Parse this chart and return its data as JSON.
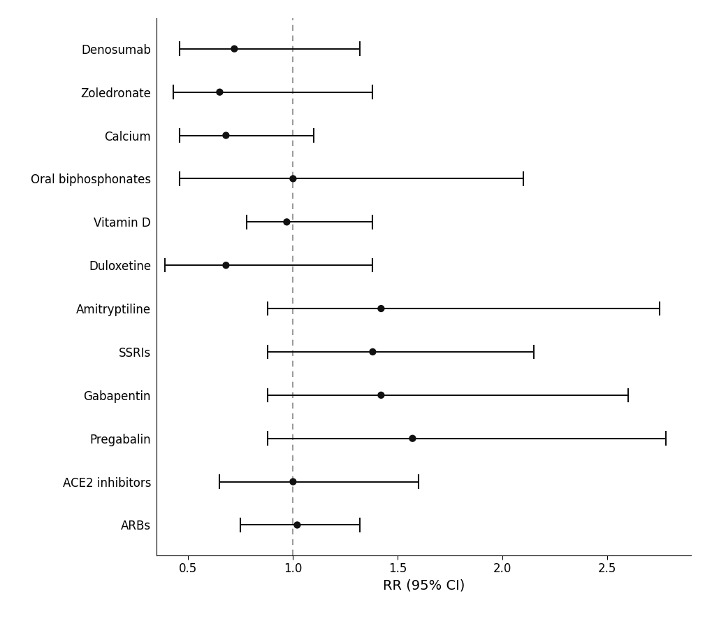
{
  "labels": [
    "Denosumab",
    "Zoledronate",
    "Calcium",
    "Oral biphosphonates",
    "Vitamin D",
    "Duloxetine",
    "Amitryptiline",
    "SSRIs",
    "Gabapentin",
    "Pregabalin",
    "ACE2 inhibitors",
    "ARBs"
  ],
  "rr": [
    0.72,
    0.65,
    0.68,
    1.0,
    0.97,
    0.68,
    1.42,
    1.38,
    1.42,
    1.57,
    1.0,
    1.02
  ],
  "ci_low": [
    0.46,
    0.43,
    0.46,
    0.46,
    0.78,
    0.39,
    0.88,
    0.88,
    0.88,
    0.88,
    0.65,
    0.75
  ],
  "ci_high": [
    1.32,
    1.38,
    1.1,
    2.1,
    1.38,
    1.38,
    2.75,
    2.15,
    2.6,
    2.78,
    1.6,
    1.32
  ],
  "xlabel": "RR (95% CI)",
  "xlim": [
    0.35,
    2.9
  ],
  "xticks": [
    0.5,
    1.0,
    1.5,
    2.0,
    2.5
  ],
  "ref_line": 1.0,
  "dot_color": "#111111",
  "line_color": "#111111",
  "ref_line_color": "#888888",
  "dot_size": 55,
  "line_width": 1.5,
  "background_color": "#ffffff",
  "xlabel_fontsize": 14,
  "tick_fontsize": 12,
  "label_fontsize": 12,
  "font_family": "DejaVu Sans"
}
